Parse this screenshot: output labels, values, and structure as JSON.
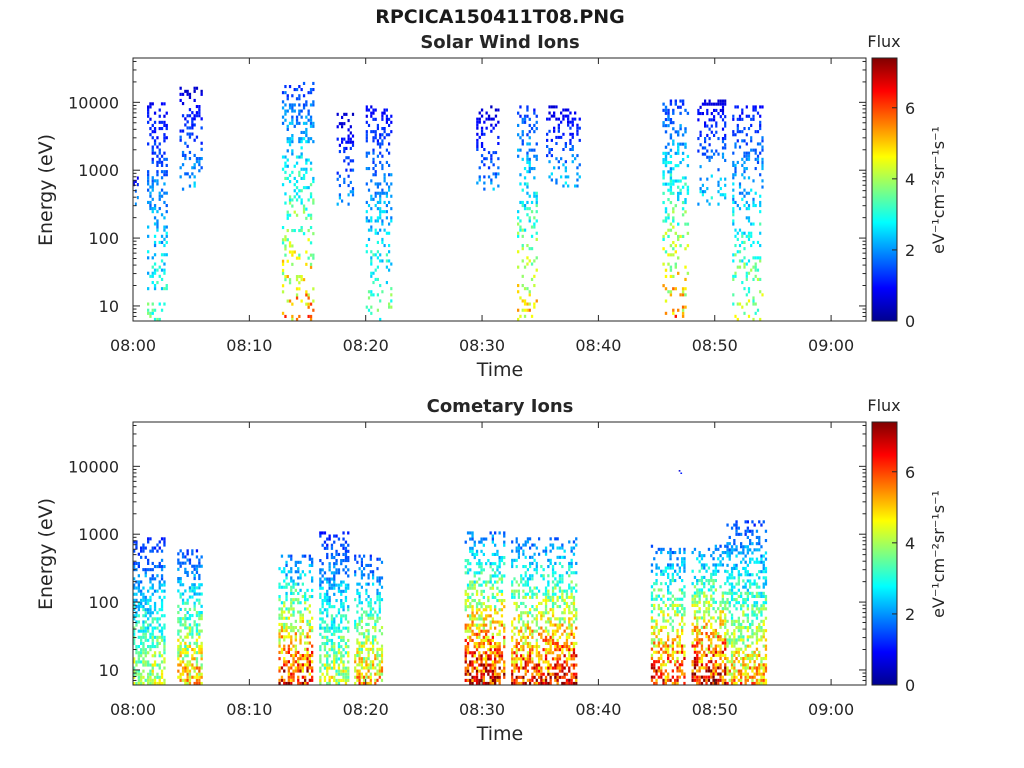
{
  "figure": {
    "title": "RPCICA150411T08.PNG"
  },
  "colorbar": {
    "label": "Flux",
    "unit": "eV⁻¹cm⁻²sr⁻¹s⁻¹",
    "ticks": [
      "0",
      "2",
      "4",
      "6"
    ],
    "tick_values": [
      0,
      2,
      4,
      6
    ],
    "range": [
      0,
      7.4
    ],
    "colormap": "jet"
  },
  "chart_data": [
    {
      "type": "heatmap",
      "title": "Solar Wind Ions",
      "xlabel": "Time",
      "ylabel": "Energy (eV)",
      "x_ticks": [
        "08:00",
        "08:10",
        "08:20",
        "08:30",
        "08:40",
        "08:50",
        "09:00"
      ],
      "x_tick_minutes": [
        0,
        10,
        20,
        30,
        40,
        50,
        60
      ],
      "xlim_minutes": [
        0,
        63
      ],
      "y_scale": "log",
      "ylim": [
        6,
        45000
      ],
      "y_ticks": [
        "10",
        "100",
        "1000",
        "10000"
      ],
      "y_tick_values": [
        10,
        100,
        1000,
        10000
      ],
      "bursts": [
        {
          "t_start": 0.0,
          "t_end": 0.5,
          "e_min": 300,
          "e_max": 900,
          "peak_flux": 2.2
        },
        {
          "t_start": 1.2,
          "t_end": 3.0,
          "e_min": 6,
          "e_max": 10000,
          "peak_flux": 3.5
        },
        {
          "t_start": 4.0,
          "t_end": 6.0,
          "e_min": 500,
          "e_max": 17000,
          "peak_flux": 2.4
        },
        {
          "t_start": 12.8,
          "t_end": 15.6,
          "e_min": 6,
          "e_max": 20000,
          "peak_flux": 5.6
        },
        {
          "t_start": 17.5,
          "t_end": 19.0,
          "e_min": 300,
          "e_max": 7000,
          "peak_flux": 2.2
        },
        {
          "t_start": 20.0,
          "t_end": 22.3,
          "e_min": 6,
          "e_max": 9000,
          "peak_flux": 3.8
        },
        {
          "t_start": 29.5,
          "t_end": 31.5,
          "e_min": 500,
          "e_max": 9000,
          "peak_flux": 2.2
        },
        {
          "t_start": 33.0,
          "t_end": 34.8,
          "e_min": 6,
          "e_max": 9000,
          "peak_flux": 5.2
        },
        {
          "t_start": 35.5,
          "t_end": 38.5,
          "e_min": 500,
          "e_max": 9000,
          "peak_flux": 2.6
        },
        {
          "t_start": 45.5,
          "t_end": 47.8,
          "e_min": 6,
          "e_max": 11000,
          "peak_flux": 5.6
        },
        {
          "t_start": 48.5,
          "t_end": 51.0,
          "e_min": 300,
          "e_max": 11000,
          "peak_flux": 2.8
        },
        {
          "t_start": 51.5,
          "t_end": 54.2,
          "e_min": 6,
          "e_max": 9000,
          "peak_flux": 4.4
        }
      ]
    },
    {
      "type": "heatmap",
      "title": "Cometary Ions",
      "xlabel": "Time",
      "ylabel": "Energy (eV)",
      "x_ticks": [
        "08:00",
        "08:10",
        "08:20",
        "08:30",
        "08:40",
        "08:50",
        "09:00"
      ],
      "x_tick_minutes": [
        0,
        10,
        20,
        30,
        40,
        50,
        60
      ],
      "xlim_minutes": [
        0,
        63
      ],
      "y_scale": "log",
      "ylim": [
        6,
        45000
      ],
      "y_ticks": [
        "10",
        "100",
        "1000",
        "10000"
      ],
      "y_tick_values": [
        10,
        100,
        1000,
        10000
      ],
      "bursts": [
        {
          "t_start": 0.0,
          "t_end": 2.8,
          "e_min": 6,
          "e_max": 900,
          "peak_flux": 4.6
        },
        {
          "t_start": 3.8,
          "t_end": 6.0,
          "e_min": 6,
          "e_max": 600,
          "peak_flux": 5.6
        },
        {
          "t_start": 12.5,
          "t_end": 15.5,
          "e_min": 6,
          "e_max": 500,
          "peak_flux": 7.0
        },
        {
          "t_start": 16.0,
          "t_end": 18.6,
          "e_min": 6,
          "e_max": 1100,
          "peak_flux": 4.6
        },
        {
          "t_start": 19.0,
          "t_end": 21.5,
          "e_min": 6,
          "e_max": 500,
          "peak_flux": 5.6
        },
        {
          "t_start": 28.5,
          "t_end": 32.0,
          "e_min": 6,
          "e_max": 1100,
          "peak_flux": 7.2
        },
        {
          "t_start": 32.5,
          "t_end": 35.0,
          "e_min": 6,
          "e_max": 900,
          "peak_flux": 6.8
        },
        {
          "t_start": 35.0,
          "t_end": 38.2,
          "e_min": 6,
          "e_max": 900,
          "peak_flux": 7.2
        },
        {
          "t_start": 44.5,
          "t_end": 47.5,
          "e_min": 6,
          "e_max": 700,
          "peak_flux": 6.8
        },
        {
          "t_start": 48.0,
          "t_end": 51.0,
          "e_min": 6,
          "e_max": 700,
          "peak_flux": 7.2
        },
        {
          "t_start": 51.0,
          "t_end": 54.5,
          "e_min": 6,
          "e_max": 1600,
          "peak_flux": 5.6
        },
        {
          "t_start": 46.9,
          "t_end": 47.2,
          "e_min": 7800,
          "e_max": 8800,
          "peak_flux": 1.2
        }
      ]
    }
  ]
}
